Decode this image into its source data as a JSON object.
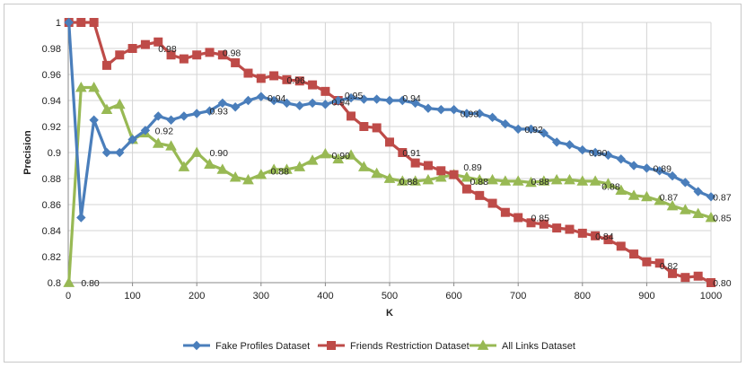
{
  "chart_data": {
    "type": "line",
    "title": "",
    "xlabel": "K",
    "ylabel": "Precision",
    "xlim": [
      0,
      1000
    ],
    "ylim": [
      0.8,
      1.0
    ],
    "grid": true,
    "legend_position": "bottom",
    "x_ticks": [
      "0",
      "100",
      "200",
      "300",
      "400",
      "500",
      "600",
      "700",
      "800",
      "900",
      "1000"
    ],
    "y_ticks": [
      "0.8",
      "0.82",
      "0.84",
      "0.86",
      "0.88",
      "0.9",
      "0.92",
      "0.94",
      "0.96",
      "0.98",
      "1"
    ],
    "x": [
      1,
      20,
      40,
      60,
      80,
      100,
      120,
      140,
      160,
      180,
      200,
      220,
      240,
      260,
      280,
      300,
      320,
      340,
      360,
      380,
      400,
      420,
      440,
      460,
      480,
      500,
      520,
      540,
      560,
      580,
      600,
      620,
      640,
      660,
      680,
      700,
      720,
      740,
      760,
      780,
      800,
      820,
      840,
      860,
      880,
      900,
      920,
      940,
      960,
      980,
      1000
    ],
    "series": [
      {
        "name": "Fake Profiles Dataset",
        "color": "#4a7ebb",
        "marker": "diamond",
        "values": [
          1.0,
          0.85,
          0.925,
          0.9,
          0.9,
          0.91,
          0.917,
          0.928,
          0.925,
          0.928,
          0.93,
          0.932,
          0.938,
          0.935,
          0.94,
          0.943,
          0.94,
          0.938,
          0.936,
          0.938,
          0.937,
          0.94,
          0.942,
          0.941,
          0.941,
          0.94,
          0.94,
          0.938,
          0.934,
          0.933,
          0.933,
          0.93,
          0.93,
          0.927,
          0.922,
          0.918,
          0.918,
          0.915,
          0.908,
          0.906,
          0.902,
          0.9,
          0.898,
          0.895,
          0.89,
          0.888,
          0.886,
          0.882,
          0.877,
          0.87,
          0.866
        ]
      },
      {
        "name": "Friends Restriction Dataset",
        "color": "#be4b48",
        "marker": "square",
        "values": [
          1.0,
          1.0,
          1.0,
          0.967,
          0.975,
          0.98,
          0.983,
          0.985,
          0.975,
          0.972,
          0.975,
          0.977,
          0.975,
          0.969,
          0.961,
          0.957,
          0.959,
          0.956,
          0.955,
          0.952,
          0.947,
          0.94,
          0.928,
          0.92,
          0.919,
          0.908,
          0.9,
          0.892,
          0.89,
          0.886,
          0.883,
          0.872,
          0.867,
          0.861,
          0.854,
          0.85,
          0.846,
          0.845,
          0.842,
          0.841,
          0.838,
          0.836,
          0.833,
          0.828,
          0.822,
          0.816,
          0.815,
          0.807,
          0.804,
          0.805,
          0.8
        ]
      },
      {
        "name": "All Links Dataset",
        "color": "#98b954",
        "marker": "triangle",
        "values": [
          0.8,
          0.95,
          0.95,
          0.933,
          0.937,
          0.91,
          0.915,
          0.907,
          0.905,
          0.889,
          0.9,
          0.891,
          0.887,
          0.881,
          0.879,
          0.883,
          0.887,
          0.887,
          0.889,
          0.894,
          0.899,
          0.895,
          0.898,
          0.889,
          0.884,
          0.88,
          0.878,
          0.878,
          0.879,
          0.881,
          0.883,
          0.881,
          0.879,
          0.879,
          0.878,
          0.878,
          0.877,
          0.878,
          0.879,
          0.879,
          0.878,
          0.878,
          0.876,
          0.871,
          0.867,
          0.866,
          0.863,
          0.859,
          0.856,
          0.853,
          0.85
        ]
      }
    ],
    "annotations": [
      {
        "text": "0.98",
        "x": 140,
        "y": 0.98,
        "series": "Friends Restriction Dataset"
      },
      {
        "text": "0.98",
        "x": 240,
        "y": 0.977,
        "series": "Friends Restriction Dataset"
      },
      {
        "text": "0.96",
        "x": 340,
        "y": 0.956,
        "series": "Friends Restriction Dataset"
      },
      {
        "text": "0.95",
        "x": 430,
        "y": 0.944,
        "series": "Friends Restriction Dataset"
      },
      {
        "text": "0.91",
        "x": 520,
        "y": 0.9,
        "series": "Friends Restriction Dataset"
      },
      {
        "text": "0.88",
        "x": 625,
        "y": 0.878,
        "series": "Friends Restriction Dataset"
      },
      {
        "text": "0.85",
        "x": 720,
        "y": 0.85,
        "series": "Friends Restriction Dataset"
      },
      {
        "text": "0.84",
        "x": 820,
        "y": 0.836,
        "series": "Friends Restriction Dataset"
      },
      {
        "text": "0.82",
        "x": 920,
        "y": 0.813,
        "series": "Friends Restriction Dataset"
      },
      {
        "text": "0.80",
        "x": 1003,
        "y": 0.8,
        "series": "Friends Restriction Dataset"
      },
      {
        "text": "0.93",
        "x": 220,
        "y": 0.932,
        "series": "Fake Profiles Dataset"
      },
      {
        "text": "0.94",
        "x": 310,
        "y": 0.942,
        "series": "Fake Profiles Dataset"
      },
      {
        "text": "0.94",
        "x": 410,
        "y": 0.939,
        "series": "Fake Profiles Dataset"
      },
      {
        "text": "0.94",
        "x": 520,
        "y": 0.942,
        "series": "Fake Profiles Dataset"
      },
      {
        "text": "0.93",
        "x": 610,
        "y": 0.93,
        "series": "Fake Profiles Dataset"
      },
      {
        "text": "0.92",
        "x": 710,
        "y": 0.918,
        "series": "Fake Profiles Dataset"
      },
      {
        "text": "0.90",
        "x": 810,
        "y": 0.9,
        "series": "Fake Profiles Dataset"
      },
      {
        "text": "0.89",
        "x": 910,
        "y": 0.888,
        "series": "Fake Profiles Dataset"
      },
      {
        "text": "0.87",
        "x": 1003,
        "y": 0.866,
        "series": "Fake Profiles Dataset"
      },
      {
        "text": "0.80",
        "x": 20,
        "y": 0.8,
        "series": "All Links Dataset"
      },
      {
        "text": "0.92",
        "x": 135,
        "y": 0.917,
        "series": "All Links Dataset"
      },
      {
        "text": "0.90",
        "x": 220,
        "y": 0.9,
        "series": "All Links Dataset"
      },
      {
        "text": "0.88",
        "x": 315,
        "y": 0.886,
        "series": "All Links Dataset"
      },
      {
        "text": "0.90",
        "x": 410,
        "y": 0.898,
        "series": "All Links Dataset"
      },
      {
        "text": "0.88",
        "x": 515,
        "y": 0.878,
        "series": "All Links Dataset"
      },
      {
        "text": "0.89",
        "x": 615,
        "y": 0.889,
        "series": "All Links Dataset"
      },
      {
        "text": "0.88",
        "x": 720,
        "y": 0.878,
        "series": "All Links Dataset"
      },
      {
        "text": "0.88",
        "x": 830,
        "y": 0.874,
        "series": "All Links Dataset"
      },
      {
        "text": "0.87",
        "x": 920,
        "y": 0.866,
        "series": "All Links Dataset"
      },
      {
        "text": "0.85",
        "x": 1003,
        "y": 0.85,
        "series": "All Links Dataset"
      }
    ]
  }
}
